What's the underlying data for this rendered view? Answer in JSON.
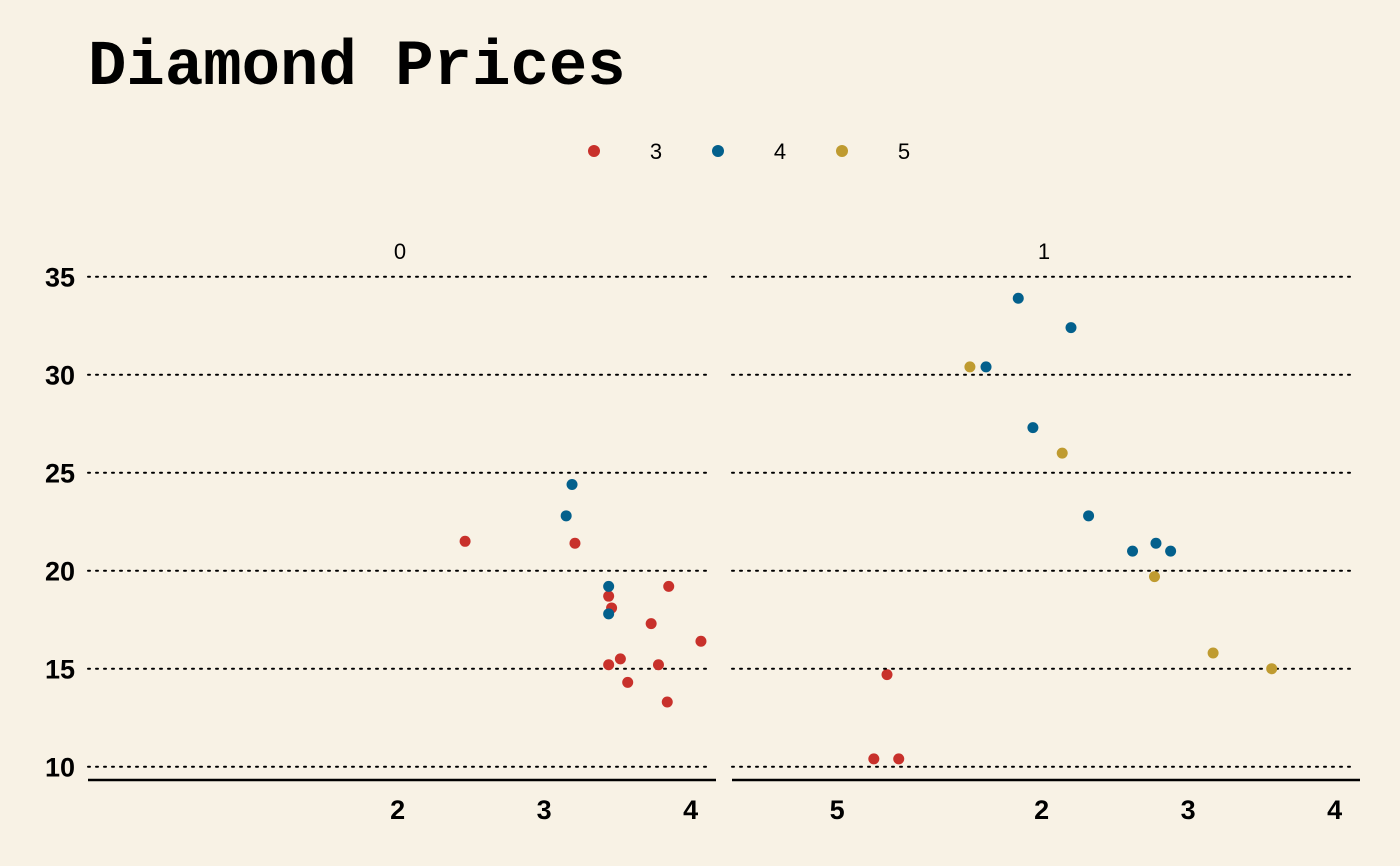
{
  "chart_data": {
    "type": "scatter",
    "title": "Diamond Prices",
    "xlabel": "",
    "ylabel": "",
    "xlim": [
      1.35,
      5.6
    ],
    "ylim": [
      9.3,
      35.5
    ],
    "x_ticks": [
      "2",
      "3",
      "4",
      "5"
    ],
    "y_ticks": [
      "10",
      "15",
      "20",
      "25",
      "30",
      "35"
    ],
    "grid": "horizontal-dotted",
    "legend_placement": "top-center",
    "legend": [
      {
        "label": "3",
        "color": "#c8312b"
      },
      {
        "label": "4",
        "color": "#03608c"
      },
      {
        "label": "5",
        "color": "#bf9b30"
      }
    ],
    "panels": [
      {
        "label": "0",
        "series": [
          {
            "name": "3",
            "color": "#c8312b",
            "points": [
              [
                2.46,
                21.5
              ],
              [
                3.21,
                21.4
              ],
              [
                3.44,
                18.7
              ],
              [
                3.46,
                18.1
              ],
              [
                3.85,
                19.2
              ],
              [
                3.73,
                17.3
              ],
              [
                4.07,
                16.4
              ],
              [
                3.44,
                15.2
              ],
              [
                3.52,
                15.5
              ],
              [
                3.78,
                15.2
              ],
              [
                3.57,
                14.3
              ],
              [
                3.84,
                13.3
              ],
              [
                5.34,
                14.7
              ],
              [
                5.25,
                10.4
              ],
              [
                5.42,
                10.4
              ]
            ]
          },
          {
            "name": "4",
            "color": "#03608c",
            "points": [
              [
                3.19,
                24.4
              ],
              [
                3.15,
                22.8
              ],
              [
                3.44,
                19.2
              ],
              [
                3.44,
                17.8
              ]
            ]
          },
          {
            "name": "5",
            "color": "#bf9b30",
            "points": []
          }
        ]
      },
      {
        "label": "1",
        "series": [
          {
            "name": "3",
            "color": "#c8312b",
            "points": []
          },
          {
            "name": "4",
            "color": "#03608c",
            "points": [
              [
                1.84,
                33.9
              ],
              [
                2.2,
                32.4
              ],
              [
                1.62,
                30.4
              ],
              [
                1.94,
                27.3
              ],
              [
                2.32,
                22.8
              ],
              [
                2.62,
                21.0
              ],
              [
                2.78,
                21.4
              ],
              [
                2.88,
                21.0
              ]
            ]
          },
          {
            "name": "5",
            "color": "#bf9b30",
            "points": [
              [
                1.51,
                30.4
              ],
              [
                2.14,
                26.0
              ],
              [
                2.77,
                19.7
              ],
              [
                3.17,
                15.8
              ],
              [
                3.57,
                15.0
              ]
            ]
          }
        ]
      }
    ]
  }
}
